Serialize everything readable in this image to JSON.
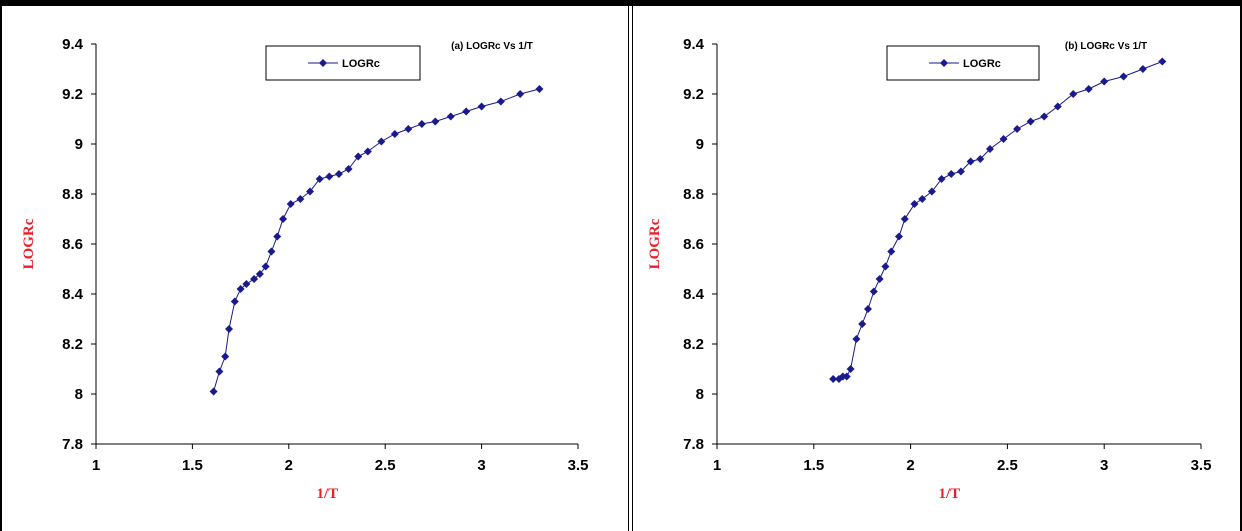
{
  "chart_data": [
    {
      "type": "line",
      "title": "(a) LOGRc Vs 1/T",
      "xlabel": "1/T",
      "ylabel": "LOGRc",
      "xlim": [
        1,
        3.5
      ],
      "ylim": [
        7.8,
        9.4
      ],
      "xticks": [
        "1",
        "1.5",
        "2",
        "2.5",
        "3",
        "3.5"
      ],
      "yticks": [
        "7.8",
        "8",
        "8.2",
        "8.4",
        "8.6",
        "8.8",
        "9",
        "9.2",
        "9.4"
      ],
      "grid": false,
      "legend_position": "top-center",
      "series": [
        {
          "name": "LOGRc",
          "color": "#1a1a8c",
          "x": [
            1.61,
            1.64,
            1.67,
            1.69,
            1.72,
            1.75,
            1.78,
            1.82,
            1.85,
            1.88,
            1.91,
            1.94,
            1.97,
            2.01,
            2.06,
            2.11,
            2.16,
            2.21,
            2.26,
            2.31,
            2.36,
            2.41,
            2.48,
            2.55,
            2.62,
            2.69,
            2.76,
            2.84,
            2.92,
            3.0,
            3.1,
            3.2,
            3.3
          ],
          "y": [
            8.01,
            8.09,
            8.15,
            8.26,
            8.37,
            8.42,
            8.44,
            8.46,
            8.48,
            8.51,
            8.57,
            8.63,
            8.7,
            8.76,
            8.78,
            8.81,
            8.86,
            8.87,
            8.88,
            8.9,
            8.95,
            8.97,
            9.01,
            9.04,
            9.06,
            9.08,
            9.09,
            9.11,
            9.13,
            9.15,
            9.17,
            9.2,
            9.22
          ]
        }
      ]
    },
    {
      "type": "line",
      "title": "(b) LOGRc Vs 1/T",
      "xlabel": "1/T",
      "ylabel": "LOGRc",
      "xlim": [
        1,
        3.5
      ],
      "ylim": [
        7.8,
        9.4
      ],
      "xticks": [
        "1",
        "1.5",
        "2",
        "2.5",
        "3",
        "3.5"
      ],
      "yticks": [
        "7.8",
        "8",
        "8.2",
        "8.4",
        "8.6",
        "8.8",
        "9",
        "9.2",
        "9.4"
      ],
      "grid": false,
      "legend_position": "top-center",
      "series": [
        {
          "name": "LOGRc",
          "color": "#1a1a8c",
          "x": [
            1.6,
            1.63,
            1.65,
            1.67,
            1.69,
            1.72,
            1.75,
            1.78,
            1.81,
            1.84,
            1.87,
            1.9,
            1.94,
            1.97,
            2.02,
            2.06,
            2.11,
            2.16,
            2.21,
            2.26,
            2.31,
            2.36,
            2.41,
            2.48,
            2.55,
            2.62,
            2.69,
            2.76,
            2.84,
            2.92,
            3.0,
            3.1,
            3.2,
            3.3
          ],
          "y": [
            8.06,
            8.06,
            8.07,
            8.07,
            8.1,
            8.22,
            8.28,
            8.34,
            8.41,
            8.46,
            8.51,
            8.57,
            8.63,
            8.7,
            8.76,
            8.78,
            8.81,
            8.86,
            8.88,
            8.89,
            8.93,
            8.94,
            8.98,
            9.02,
            9.06,
            9.09,
            9.11,
            9.15,
            9.2,
            9.22,
            9.25,
            9.27,
            9.3,
            9.33
          ]
        }
      ]
    }
  ]
}
